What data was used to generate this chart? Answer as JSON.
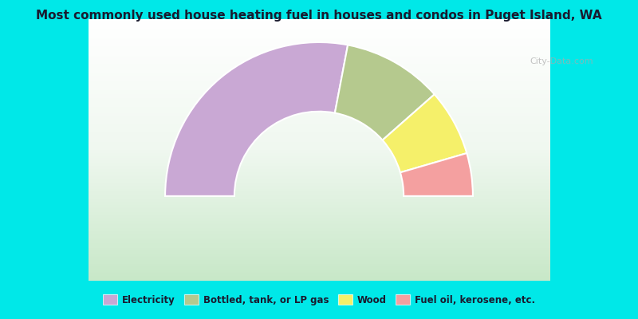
{
  "title": "Most commonly used house heating fuel in houses and condos in Puget Island, WA",
  "segments": [
    {
      "label": "Electricity",
      "value": 56.0,
      "color": "#c9a8d4"
    },
    {
      "label": "Bottled, tank, or LP gas",
      "value": 21.0,
      "color": "#b5c98e"
    },
    {
      "label": "Wood",
      "value": 14.0,
      "color": "#f5f06a"
    },
    {
      "label": "Fuel oil, kerosene, etc.",
      "value": 9.0,
      "color": "#f4a0a0"
    }
  ],
  "background_color": "#00e8e8",
  "chart_bg_start": "#e8f5e8",
  "chart_bg_end": "#ffffff",
  "title_color": "#1a1a2e",
  "legend_color": "#1a1a2e",
  "watermark": "City-Data.com"
}
